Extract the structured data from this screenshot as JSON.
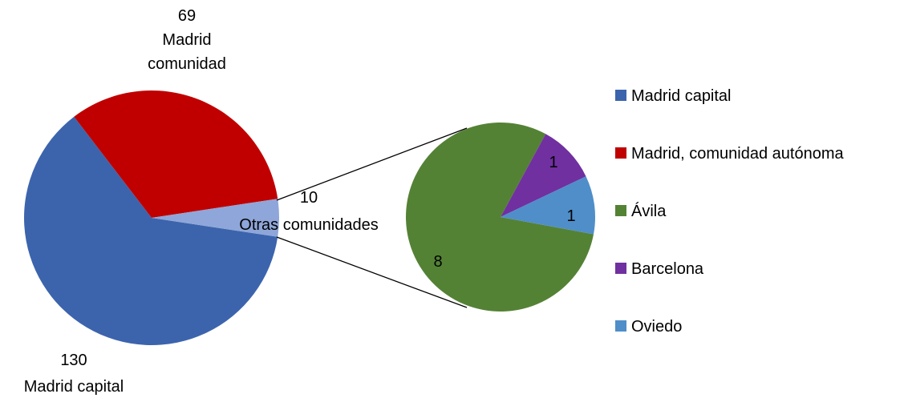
{
  "chart_data": {
    "type": "pie",
    "title": "",
    "main_pie": {
      "slices": [
        {
          "key": "madrid_capital",
          "value": 130,
          "value_label": "130",
          "label": "Madrid capital",
          "color": "#3c64ad"
        },
        {
          "key": "madrid_comunidad",
          "value": 69,
          "value_label": "69",
          "label": "Madrid comunidad",
          "label_lines": [
            "Madrid",
            "comunidad"
          ],
          "color": "#c00000"
        },
        {
          "key": "otras_comunidades",
          "value": 10,
          "value_label": "10",
          "label": "Otras comunidades",
          "color": "#8ea6d9"
        }
      ]
    },
    "secondary_pie": {
      "slices": [
        {
          "key": "avila",
          "value": 8,
          "value_label": "8",
          "color": "#548235"
        },
        {
          "key": "barcelona",
          "value": 1,
          "value_label": "1",
          "color": "#7030a0"
        },
        {
          "key": "oviedo",
          "value": 1,
          "value_label": "1",
          "color": "#4f8ec9"
        }
      ]
    },
    "legend": {
      "position": "right",
      "entries": [
        {
          "key": "madrid_capital",
          "label": "Madrid capital",
          "color": "#3c64ad"
        },
        {
          "key": "madrid_autonoma",
          "label": "Madrid, comunidad autónoma",
          "color": "#c00000"
        },
        {
          "key": "avila",
          "label": "Ávila",
          "color": "#548235"
        },
        {
          "key": "barcelona",
          "label": "Barcelona",
          "color": "#7030a0"
        },
        {
          "key": "oviedo",
          "label": "Oviedo",
          "color": "#4f8ec9"
        }
      ]
    }
  }
}
